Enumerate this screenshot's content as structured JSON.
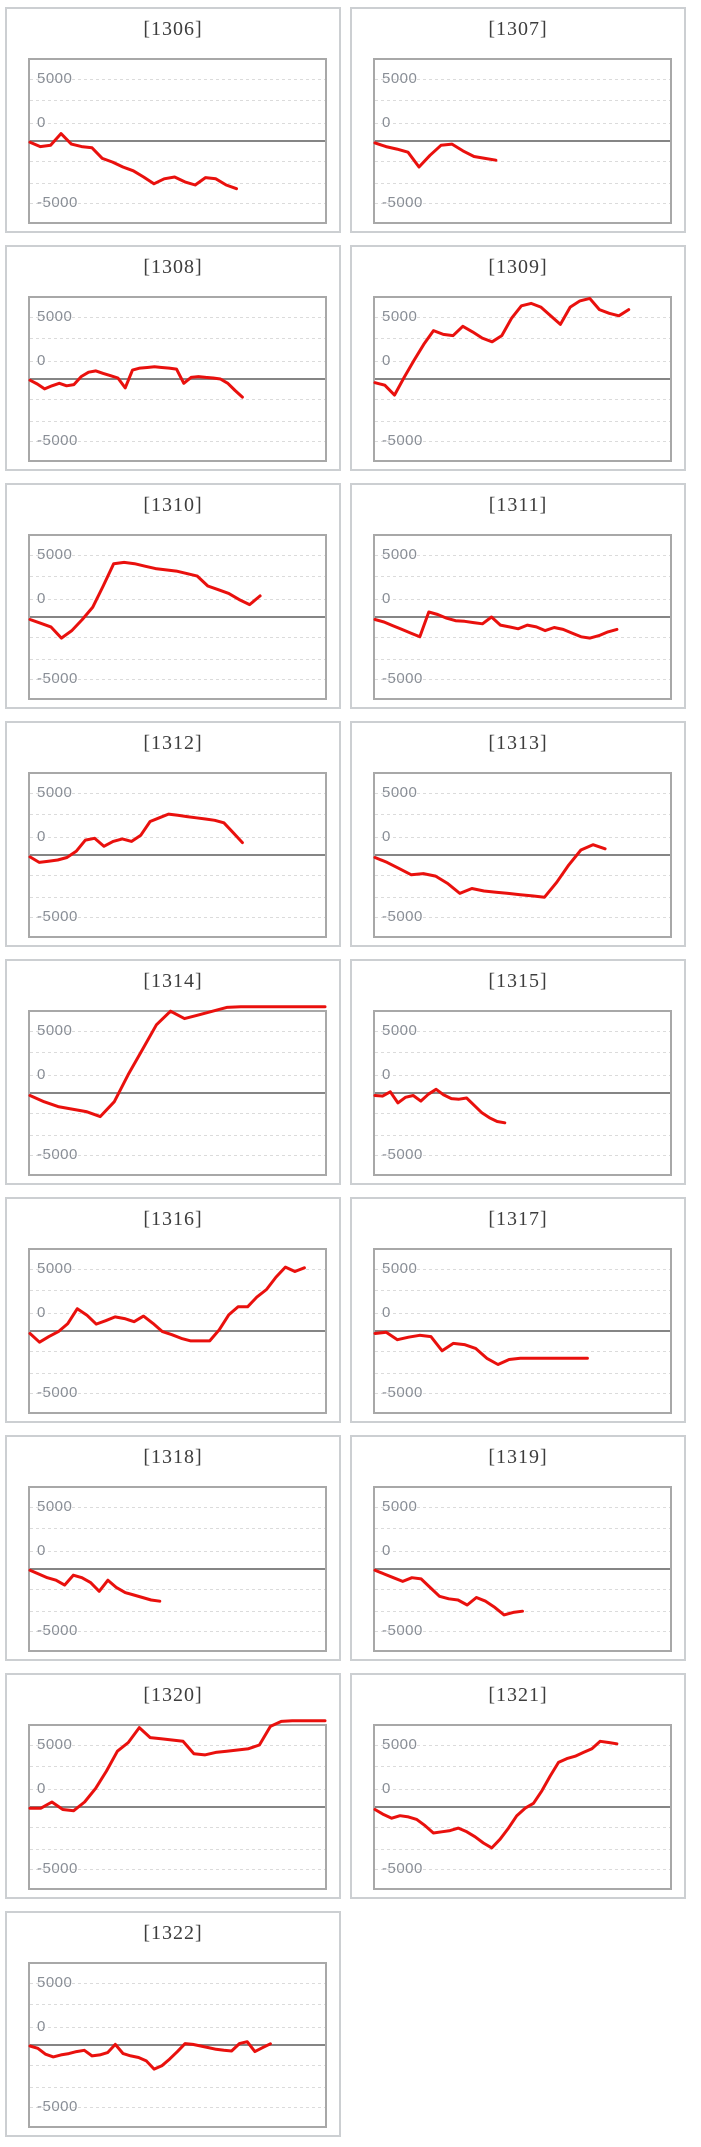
{
  "page": {
    "background": "#ffffff"
  },
  "colors": {
    "series_line": "#e9100d",
    "zero_line": "#858585",
    "gridline": "#dbdbdb",
    "plot_border": "#a8a8a8",
    "card_border": "#cccfd2",
    "axis_label": "#898e96",
    "title": "#3d3d3d"
  },
  "axis": {
    "tick_labels": [
      "5000",
      "0",
      "-5000"
    ],
    "tick_values": [
      5000,
      0,
      -5000
    ],
    "ylim": [
      -6700,
      6900
    ],
    "grid": "on"
  },
  "chart_data": [
    {
      "type": "line",
      "title": "[1306]",
      "x_span_frac": 0.7,
      "values": [
        -100,
        -450,
        -350,
        600,
        -250,
        -450,
        -550,
        -1400,
        -1700,
        -2100,
        -2400,
        -2900,
        -3450,
        -3050,
        -2900,
        -3300,
        -3550,
        -2950,
        -3050,
        -3550,
        -3850
      ]
    },
    {
      "type": "line",
      "title": "[1307]",
      "x_span_frac": 0.41,
      "values": [
        -150,
        -450,
        -650,
        -900,
        -2100,
        -1150,
        -350,
        -250,
        -800,
        -1250,
        -1400,
        -1550
      ]
    },
    {
      "type": "line",
      "title": "[1308]",
      "x_span_frac": 0.72,
      "values": [
        -100,
        -400,
        -800,
        -550,
        -350,
        -550,
        -450,
        200,
        550,
        650,
        450,
        270,
        80,
        -720,
        720,
        880,
        930,
        980,
        930,
        880,
        800,
        -350,
        130,
        190,
        130,
        80,
        0,
        -350,
        -930,
        -1460
      ]
    },
    {
      "type": "line",
      "title": "[1309]",
      "x_span_frac": 0.86,
      "values": [
        -300,
        -500,
        -1300,
        150,
        1500,
        2800,
        3900,
        3600,
        3500,
        4250,
        3800,
        3300,
        3000,
        3500,
        4900,
        5900,
        6100,
        5800,
        5100,
        4400,
        5800,
        6300,
        6500,
        5600,
        5300,
        5100,
        5600
      ]
    },
    {
      "type": "line",
      "title": "[1310]",
      "x_span_frac": 0.78,
      "values": [
        -200,
        -500,
        -800,
        -1700,
        -1100,
        -200,
        800,
        2500,
        4300,
        4400,
        4300,
        4100,
        3900,
        3800,
        3700,
        3500,
        3300,
        2500,
        2200,
        1900,
        1400,
        1000,
        1700
      ]
    },
    {
      "type": "line",
      "title": "[1311]",
      "x_span_frac": 0.82,
      "values": [
        -200,
        -400,
        -700,
        -1000,
        -1300,
        -1600,
        400,
        200,
        -100,
        -300,
        -350,
        -450,
        -550,
        0,
        -650,
        -800,
        -950,
        -650,
        -800,
        -1100,
        -850,
        -1000,
        -1300,
        -1600,
        -1700,
        -1500,
        -1200,
        -1000
      ]
    },
    {
      "type": "line",
      "title": "[1312]",
      "x_span_frac": 0.72,
      "values": [
        -150,
        -600,
        -500,
        -400,
        -200,
        300,
        1200,
        1350,
        700,
        1100,
        1300,
        1100,
        1600,
        2700,
        3000,
        3300,
        3200,
        3100,
        3000,
        2900,
        2800,
        2600,
        1800,
        1000
      ]
    },
    {
      "type": "line",
      "title": "[1313]",
      "x_span_frac": 0.78,
      "values": [
        -200,
        -600,
        -1100,
        -1600,
        -1500,
        -1700,
        -2300,
        -3100,
        -2700,
        -2900,
        -3000,
        -3100,
        -3200,
        -3300,
        -3400,
        -2200,
        -800,
        400,
        830,
        500
      ]
    },
    {
      "type": "line",
      "title": "[1314]",
      "x_span_frac": 1.0,
      "values": [
        -200,
        -700,
        -1100,
        -1300,
        -1500,
        -1900,
        -700,
        1500,
        3500,
        5500,
        6600,
        6000,
        6300,
        6600,
        6900,
        6950,
        6950,
        6950,
        6950,
        6950,
        6950,
        6950
      ]
    },
    {
      "type": "line",
      "title": "[1315]",
      "x_span_frac": 0.44,
      "values": [
        -200,
        -250,
        100,
        -800,
        -350,
        -200,
        -650,
        -100,
        300,
        -150,
        -450,
        -500,
        -400,
        -1000,
        -1600,
        -2000,
        -2300,
        -2400
      ]
    },
    {
      "type": "line",
      "title": "[1316]",
      "x_span_frac": 0.93,
      "values": [
        -200,
        -900,
        -450,
        -50,
        600,
        1800,
        1280,
        560,
        830,
        1140,
        1000,
        750,
        1200,
        610,
        -50,
        -300,
        -600,
        -800,
        -800,
        -800,
        100,
        1300,
        1950,
        1950,
        2750,
        3350,
        4350,
        5150,
        4800,
        5100
      ]
    },
    {
      "type": "line",
      "title": "[1317]",
      "x_span_frac": 0.72,
      "values": [
        -200,
        -100,
        -700,
        -500,
        -350,
        -450,
        -1600,
        -1000,
        -1100,
        -1400,
        -2200,
        -2700,
        -2300,
        -2200,
        -2200,
        -2200,
        -2200,
        -2200,
        -2200,
        -2200
      ]
    },
    {
      "type": "line",
      "title": "[1318]",
      "x_span_frac": 0.44,
      "values": [
        -100,
        -400,
        -700,
        -900,
        -1300,
        -500,
        -700,
        -1100,
        -1800,
        -900,
        -1500,
        -1900,
        -2100,
        -2300,
        -2500,
        -2600
      ]
    },
    {
      "type": "line",
      "title": "[1319]",
      "x_span_frac": 0.5,
      "values": [
        -100,
        -400,
        -700,
        -1000,
        -700,
        -800,
        -1500,
        -2200,
        -2400,
        -2500,
        -2900,
        -2300,
        -2600,
        -3100,
        -3700,
        -3500,
        -3400
      ]
    },
    {
      "type": "line",
      "title": "[1320]",
      "x_span_frac": 1.0,
      "values": [
        -100,
        -100,
        400,
        -200,
        -300,
        400,
        1500,
        2900,
        4500,
        5200,
        6400,
        5600,
        5500,
        5400,
        5300,
        4300,
        4200,
        4400,
        4500,
        4600,
        4700,
        5000,
        6500,
        6900,
        6950,
        6950,
        6950,
        6950
      ]
    },
    {
      "type": "line",
      "title": "[1321]",
      "x_span_frac": 0.82,
      "values": [
        -200,
        -600,
        -900,
        -700,
        -800,
        -1000,
        -1500,
        -2100,
        -2000,
        -1900,
        -1700,
        -2000,
        -2400,
        -2900,
        -3300,
        -2600,
        -1700,
        -700,
        -100,
        300,
        1300,
        2500,
        3600,
        3900,
        4100,
        4400,
        4700,
        5300,
        5200,
        5100
      ]
    },
    {
      "type": "line",
      "title": "[1322]",
      "x_span_frac": 0.815,
      "values": [
        -80,
        -270,
        -740,
        -960,
        -800,
        -690,
        -530,
        -430,
        -880,
        -800,
        -610,
        50,
        -690,
        -880,
        -1010,
        -1280,
        -1940,
        -1680,
        -1140,
        -530,
        110,
        50,
        -80,
        -210,
        -350,
        -430,
        -480,
        110,
        270,
        -530,
        -210,
        100
      ]
    }
  ]
}
